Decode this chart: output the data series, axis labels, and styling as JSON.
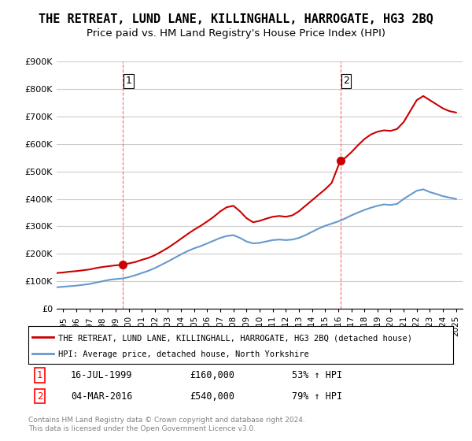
{
  "title": "THE RETREAT, LUND LANE, KILLINGHALL, HARROGATE, HG3 2BQ",
  "subtitle": "Price paid vs. HM Land Registry's House Price Index (HPI)",
  "title_fontsize": 11,
  "subtitle_fontsize": 9.5,
  "background_color": "#ffffff",
  "plot_bg_color": "#ffffff",
  "grid_color": "#cccccc",
  "purchase1": {
    "date_num": 1999.54,
    "price": 160000,
    "label": "1"
  },
  "purchase2": {
    "date_num": 2016.17,
    "price": 540000,
    "label": "2"
  },
  "red_line_color": "#cc0000",
  "blue_line_color": "#6699cc",
  "dashed_color": "#ff6666",
  "dashed_color2": "#ff6666",
  "ylim": [
    0,
    900000
  ],
  "xlim": [
    1994.5,
    2025.5
  ],
  "yticks": [
    0,
    100000,
    200000,
    300000,
    400000,
    500000,
    600000,
    700000,
    800000,
    900000
  ],
  "ytick_labels": [
    "£0",
    "£100K",
    "£200K",
    "£300K",
    "£400K",
    "£500K",
    "£600K",
    "£700K",
    "£800K",
    "£900K"
  ],
  "xtick_years": [
    1995,
    1996,
    1997,
    1998,
    1999,
    2000,
    2001,
    2002,
    2003,
    2004,
    2005,
    2006,
    2007,
    2008,
    2009,
    2010,
    2011,
    2012,
    2013,
    2014,
    2015,
    2016,
    2017,
    2018,
    2019,
    2020,
    2021,
    2022,
    2023,
    2024,
    2025
  ],
  "legend_red_label": "THE RETREAT, LUND LANE, KILLINGHALL, HARROGATE, HG3 2BQ (detached house)",
  "legend_blue_label": "HPI: Average price, detached house, North Yorkshire",
  "annotation1_date": "16-JUL-1999",
  "annotation1_price": "£160,000",
  "annotation1_hpi": "53% ↑ HPI",
  "annotation2_date": "04-MAR-2016",
  "annotation2_price": "£540,000",
  "annotation2_hpi": "79% ↑ HPI",
  "footer": "Contains HM Land Registry data © Crown copyright and database right 2024.\nThis data is licensed under the Open Government Licence v3.0.",
  "red_x": [
    1994.5,
    1995.0,
    1995.5,
    1996.0,
    1996.5,
    1997.0,
    1997.5,
    1998.0,
    1998.5,
    1999.0,
    1999.54,
    1999.54,
    2000.0,
    2000.5,
    2001.0,
    2001.5,
    2002.0,
    2002.5,
    2003.0,
    2003.5,
    2004.0,
    2004.5,
    2005.0,
    2005.5,
    2006.0,
    2006.5,
    2007.0,
    2007.5,
    2008.0,
    2008.5,
    2009.0,
    2009.5,
    2010.0,
    2010.5,
    2011.0,
    2011.5,
    2012.0,
    2012.5,
    2013.0,
    2013.5,
    2014.0,
    2014.5,
    2015.0,
    2015.5,
    2016.17,
    2016.17,
    2016.5,
    2017.0,
    2017.5,
    2018.0,
    2018.5,
    2019.0,
    2019.5,
    2020.0,
    2020.5,
    2021.0,
    2021.5,
    2022.0,
    2022.5,
    2023.0,
    2023.5,
    2024.0,
    2024.5,
    2025.0
  ],
  "red_y": [
    130000,
    132000,
    135000,
    137000,
    140000,
    143000,
    148000,
    152000,
    155000,
    158000,
    160000,
    160000,
    165000,
    170000,
    178000,
    185000,
    195000,
    208000,
    222000,
    238000,
    255000,
    272000,
    288000,
    302000,
    318000,
    335000,
    355000,
    370000,
    375000,
    355000,
    330000,
    315000,
    320000,
    328000,
    335000,
    338000,
    335000,
    340000,
    355000,
    375000,
    395000,
    415000,
    435000,
    458000,
    540000,
    540000,
    548000,
    570000,
    595000,
    618000,
    635000,
    645000,
    650000,
    648000,
    655000,
    680000,
    720000,
    760000,
    775000,
    760000,
    745000,
    730000,
    720000,
    715000
  ],
  "blue_x": [
    1994.5,
    1995.0,
    1995.5,
    1996.0,
    1996.5,
    1997.0,
    1997.5,
    1998.0,
    1998.5,
    1999.0,
    1999.5,
    2000.0,
    2000.5,
    2001.0,
    2001.5,
    2002.0,
    2002.5,
    2003.0,
    2003.5,
    2004.0,
    2004.5,
    2005.0,
    2005.5,
    2006.0,
    2006.5,
    2007.0,
    2007.5,
    2008.0,
    2008.5,
    2009.0,
    2009.5,
    2010.0,
    2010.5,
    2011.0,
    2011.5,
    2012.0,
    2012.5,
    2013.0,
    2013.5,
    2014.0,
    2014.5,
    2015.0,
    2015.5,
    2016.0,
    2016.5,
    2017.0,
    2017.5,
    2018.0,
    2018.5,
    2019.0,
    2019.5,
    2020.0,
    2020.5,
    2021.0,
    2021.5,
    2022.0,
    2022.5,
    2023.0,
    2023.5,
    2024.0,
    2024.5,
    2025.0
  ],
  "blue_y": [
    78000,
    80000,
    82000,
    84000,
    87000,
    90000,
    95000,
    100000,
    105000,
    108000,
    110000,
    115000,
    122000,
    130000,
    138000,
    148000,
    160000,
    172000,
    185000,
    198000,
    210000,
    220000,
    228000,
    238000,
    248000,
    258000,
    265000,
    268000,
    258000,
    245000,
    238000,
    240000,
    245000,
    250000,
    252000,
    250000,
    252000,
    258000,
    268000,
    280000,
    292000,
    302000,
    310000,
    318000,
    328000,
    340000,
    350000,
    360000,
    368000,
    375000,
    380000,
    378000,
    382000,
    400000,
    415000,
    430000,
    435000,
    425000,
    418000,
    410000,
    405000,
    400000
  ]
}
